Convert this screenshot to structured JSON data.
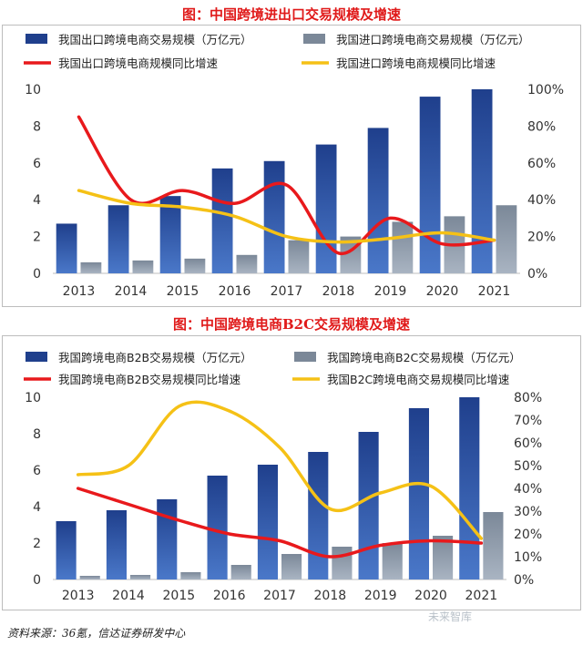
{
  "chart_data": [
    {
      "type": "bar",
      "title": "图：中国跨境进出口交易规模及增速",
      "categories": [
        "2013",
        "2014",
        "2015",
        "2016",
        "2017",
        "2018",
        "2019",
        "2020",
        "2021"
      ],
      "ylim": [
        0,
        10
      ],
      "yticks": [
        0,
        2,
        4,
        6,
        8,
        10
      ],
      "y2lim": [
        0,
        100
      ],
      "y2ticks": [
        "0%",
        "20%",
        "40%",
        "60%",
        "80%",
        "100%"
      ],
      "series": [
        {
          "name": "我国出口跨境电商交易规模（万亿元）",
          "kind": "bar",
          "axis": "left",
          "color": "#1f3f8c",
          "values": [
            2.7,
            3.7,
            4.2,
            5.7,
            6.1,
            7.0,
            7.9,
            9.6,
            10.0
          ]
        },
        {
          "name": "我国进口跨境电商交易规模（万亿元）",
          "kind": "bar",
          "axis": "left",
          "color": "#7b8898",
          "values": [
            0.6,
            0.7,
            0.8,
            1.0,
            1.8,
            2.0,
            2.8,
            3.1,
            3.7
          ]
        },
        {
          "name": "我国出口跨境电商规模同比增速",
          "kind": "line",
          "axis": "right",
          "color": "#e8191c",
          "values": [
            85,
            40,
            45,
            38,
            48,
            11,
            30,
            16,
            18
          ]
        },
        {
          "name": "我国进口跨境电商规模同比增速",
          "kind": "line",
          "axis": "right",
          "color": "#f5c116",
          "values": [
            45,
            38,
            36,
            31,
            20,
            17,
            19,
            22,
            18
          ]
        }
      ]
    },
    {
      "type": "bar",
      "title": "图：中国跨境电商B2C交易规模及增速",
      "categories": [
        "2013",
        "2014",
        "2015",
        "2016",
        "2017",
        "2018",
        "2019",
        "2020",
        "2021"
      ],
      "ylim": [
        0,
        10
      ],
      "yticks": [
        0,
        2,
        4,
        6,
        8,
        10
      ],
      "y2lim": [
        0,
        80
      ],
      "y2ticks": [
        "0%",
        "10%",
        "20%",
        "30%",
        "40%",
        "50%",
        "60%",
        "70%",
        "80%"
      ],
      "series": [
        {
          "name": "我国跨境电商B2B交易规模（万亿元）",
          "kind": "bar",
          "axis": "left",
          "color": "#1f3f8c",
          "values": [
            3.2,
            3.8,
            4.4,
            5.7,
            6.3,
            7.0,
            8.1,
            9.4,
            10.0
          ]
        },
        {
          "name": "我国跨境电商B2C交易规模（万亿元）",
          "kind": "bar",
          "axis": "left",
          "color": "#7b8898",
          "values": [
            0.2,
            0.25,
            0.4,
            0.8,
            1.4,
            1.8,
            2.0,
            2.4,
            3.7
          ]
        },
        {
          "name": "我国跨境电商B2B交易规模同比增速",
          "kind": "line",
          "axis": "right",
          "color": "#e8191c",
          "values": [
            40,
            33,
            26,
            20,
            17,
            10,
            15,
            17,
            16
          ]
        },
        {
          "name": "我国B2C跨境电商交易规模同比增速",
          "kind": "line",
          "axis": "right",
          "color": "#f5c116",
          "values": [
            46,
            50,
            76,
            74,
            58,
            31,
            38,
            41,
            18
          ]
        }
      ]
    }
  ],
  "footer": "资料来源：36氪，信达证券研发中心",
  "watermark": "未来智库"
}
